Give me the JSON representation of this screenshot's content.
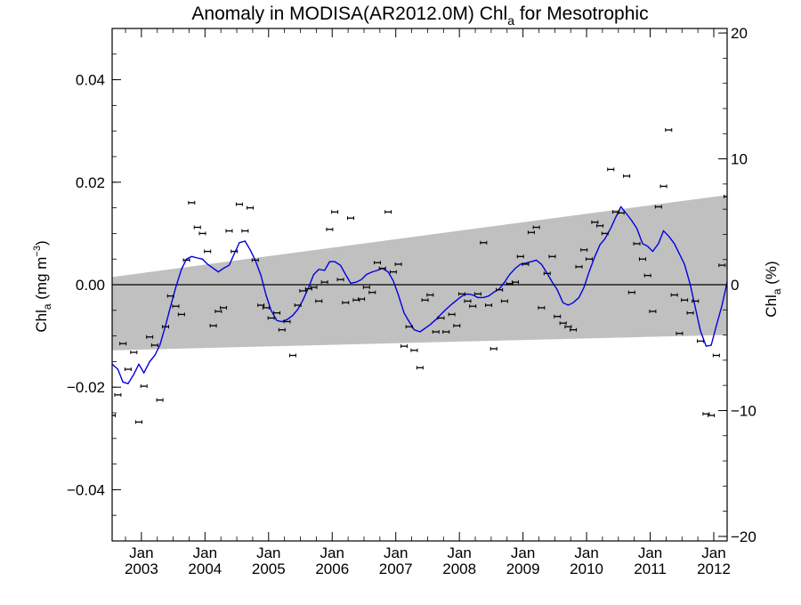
{
  "chart_data": {
    "type": "scatter",
    "title_main": "Anomaly in MODISA(AR2012.0M) Chl",
    "title_sub": "a",
    "title_tail": " for Mesotrophic",
    "ylabel_main": "Chl",
    "ylabel_sub": "a",
    "ylabel_tail": " (mg m",
    "ylabel_sup": "−3",
    "ylabel_close": ")",
    "y2label_main": "Chl",
    "y2label_sub": "a",
    "y2label_tail": " (%)",
    "xlim": [
      2002.54,
      2012.21
    ],
    "ylim": [
      -0.05,
      0.05
    ],
    "y2lim": [
      -20.36,
      20.36
    ],
    "yticks": [
      -0.04,
      -0.02,
      0.0,
      0.02,
      0.04
    ],
    "ytick_labels": [
      "−0.04",
      "−0.02",
      "0.00",
      "0.02",
      "0.04"
    ],
    "y2ticks": [
      -20,
      -10,
      0,
      10,
      20
    ],
    "y2tick_labels": [
      "−20",
      "−10",
      "0",
      "10",
      "20"
    ],
    "xticks": [
      2003,
      2004,
      2005,
      2006,
      2007,
      2008,
      2009,
      2010,
      2011,
      2012
    ],
    "xtick_month": "Jan",
    "xtick_years": [
      "2003",
      "2004",
      "2005",
      "2006",
      "2007",
      "2008",
      "2009",
      "2010",
      "2011",
      "2012"
    ],
    "colors": {
      "series": "#0000e0",
      "band": "#c0c0c0",
      "points": "#000000"
    },
    "band": {
      "lower": [
        [
          2002.54,
          -0.0128
        ],
        [
          2012.21,
          -0.0098
        ]
      ],
      "upper": [
        [
          2002.54,
          0.0015
        ],
        [
          2012.21,
          0.0175
        ]
      ]
    },
    "zero_line": 0,
    "points": {
      "x": [
        2002.54,
        2002.63,
        2002.71,
        2002.79,
        2002.88,
        2002.96,
        2003.04,
        2003.13,
        2003.21,
        2003.29,
        2003.38,
        2003.46,
        2003.54,
        2003.63,
        2003.71,
        2003.79,
        2003.88,
        2003.96,
        2004.04,
        2004.13,
        2004.21,
        2004.29,
        2004.38,
        2004.46,
        2004.54,
        2004.63,
        2004.71,
        2004.79,
        2004.88,
        2004.96,
        2005.04,
        2005.13,
        2005.21,
        2005.29,
        2005.38,
        2005.46,
        2005.54,
        2005.63,
        2005.71,
        2005.79,
        2005.88,
        2005.96,
        2006.04,
        2006.13,
        2006.21,
        2006.29,
        2006.38,
        2006.46,
        2006.54,
        2006.63,
        2006.71,
        2006.79,
        2006.88,
        2006.96,
        2007.04,
        2007.13,
        2007.21,
        2007.29,
        2007.38,
        2007.46,
        2007.54,
        2007.63,
        2007.71,
        2007.79,
        2007.88,
        2007.96,
        2008.04,
        2008.13,
        2008.21,
        2008.29,
        2008.38,
        2008.46,
        2008.54,
        2008.63,
        2008.71,
        2008.79,
        2008.88,
        2008.96,
        2009.04,
        2009.13,
        2009.21,
        2009.29,
        2009.38,
        2009.46,
        2009.54,
        2009.63,
        2009.71,
        2009.79,
        2009.88,
        2009.96,
        2010.04,
        2010.13,
        2010.21,
        2010.29,
        2010.38,
        2010.46,
        2010.54,
        2010.63,
        2010.71,
        2010.79,
        2010.88,
        2010.96,
        2011.04,
        2011.13,
        2011.21,
        2011.29,
        2011.38,
        2011.46,
        2011.54,
        2011.63,
        2011.71,
        2011.79,
        2011.88,
        2011.96,
        2012.04,
        2012.13,
        2012.21
      ],
      "y": [
        -0.0255,
        -0.0215,
        -0.0115,
        -0.0165,
        -0.0132,
        -0.0268,
        -0.0198,
        -0.0102,
        -0.0118,
        -0.0225,
        -0.0082,
        -0.0022,
        -0.0042,
        -0.0058,
        0.0048,
        0.016,
        0.0112,
        0.01,
        0.0065,
        -0.008,
        -0.0052,
        -0.0045,
        0.0105,
        0.0065,
        0.0157,
        0.0105,
        0.015,
        0.0048,
        -0.004,
        -0.0045,
        -0.0065,
        -0.0055,
        -0.0088,
        -0.0072,
        -0.0138,
        -0.004,
        -0.0012,
        -0.0008,
        -0.0005,
        -0.0032,
        0.0005,
        0.0108,
        0.0142,
        0.001,
        -0.0035,
        0.013,
        -0.003,
        -0.0028,
        -0.0005,
        -0.0015,
        0.0043,
        0.0032,
        0.0142,
        0.0025,
        0.004,
        -0.012,
        -0.0082,
        -0.0128,
        -0.0162,
        -0.003,
        -0.002,
        -0.0092,
        -0.0065,
        -0.0092,
        -0.0058,
        -0.008,
        -0.0018,
        -0.0032,
        -0.0042,
        -0.0018,
        0.0082,
        -0.004,
        -0.0125,
        -0.001,
        -0.0032,
        0.0002,
        0.0005,
        0.0055,
        0.004,
        0.0102,
        0.0112,
        -0.0045,
        0.0022,
        0.0055,
        -0.0062,
        -0.0075,
        -0.0082,
        -0.0088,
        0.0035,
        0.0068,
        0.005,
        0.0122,
        0.0115,
        0.01,
        0.0225,
        0.0142,
        0.014,
        0.0212,
        -0.0015,
        0.008,
        0.005,
        0.0018,
        -0.0052,
        0.0152,
        0.0192,
        0.0302,
        -0.002,
        -0.0095,
        -0.003,
        -0.0055,
        -0.0032,
        -0.011,
        -0.0252,
        -0.0255,
        -0.0138,
        0.0038,
        0.0172
      ]
    },
    "line": {
      "x": [
        2002.54,
        2002.63,
        2002.71,
        2002.79,
        2002.88,
        2002.96,
        2003.04,
        2003.13,
        2003.21,
        2003.29,
        2003.38,
        2003.46,
        2003.54,
        2003.63,
        2003.71,
        2003.79,
        2003.88,
        2003.96,
        2004.04,
        2004.13,
        2004.21,
        2004.29,
        2004.38,
        2004.46,
        2004.54,
        2004.63,
        2004.71,
        2004.79,
        2004.88,
        2004.96,
        2005.04,
        2005.13,
        2005.21,
        2005.29,
        2005.38,
        2005.46,
        2005.54,
        2005.63,
        2005.71,
        2005.79,
        2005.88,
        2005.96,
        2006.04,
        2006.13,
        2006.21,
        2006.29,
        2006.38,
        2006.46,
        2006.54,
        2006.63,
        2006.71,
        2006.79,
        2006.88,
        2006.96,
        2007.04,
        2007.13,
        2007.21,
        2007.29,
        2007.38,
        2007.46,
        2007.54,
        2007.63,
        2007.71,
        2007.79,
        2007.88,
        2007.96,
        2008.04,
        2008.13,
        2008.21,
        2008.29,
        2008.38,
        2008.46,
        2008.54,
        2008.63,
        2008.71,
        2008.79,
        2008.88,
        2008.96,
        2009.04,
        2009.13,
        2009.21,
        2009.29,
        2009.38,
        2009.46,
        2009.54,
        2009.63,
        2009.71,
        2009.79,
        2009.88,
        2009.96,
        2010.04,
        2010.13,
        2010.21,
        2010.29,
        2010.38,
        2010.46,
        2010.54,
        2010.63,
        2010.71,
        2010.79,
        2010.88,
        2010.96,
        2011.04,
        2011.13,
        2011.21,
        2011.29,
        2011.38,
        2011.46,
        2011.54,
        2011.63,
        2011.71,
        2011.79,
        2011.88,
        2011.96,
        2012.04,
        2012.13,
        2012.21
      ],
      "y": [
        -0.0155,
        -0.0165,
        -0.019,
        -0.0193,
        -0.0175,
        -0.0155,
        -0.0172,
        -0.015,
        -0.0138,
        -0.0118,
        -0.008,
        -0.0042,
        -0.0005,
        0.003,
        0.005,
        0.0055,
        0.0052,
        0.005,
        0.004,
        0.0032,
        0.0025,
        0.0032,
        0.0038,
        0.006,
        0.0082,
        0.0085,
        0.0068,
        0.0048,
        0.0018,
        -0.002,
        -0.005,
        -0.007,
        -0.0072,
        -0.0068,
        -0.006,
        -0.0048,
        -0.003,
        -0.0005,
        0.002,
        0.003,
        0.0028,
        0.0045,
        0.0045,
        0.0038,
        0.002,
        0.0003,
        0.0005,
        0.001,
        0.002,
        0.0025,
        0.0028,
        0.0032,
        0.0025,
        0.0008,
        -0.002,
        -0.0055,
        -0.0072,
        -0.0088,
        -0.0092,
        -0.0085,
        -0.0078,
        -0.0068,
        -0.0058,
        -0.0048,
        -0.0038,
        -0.003,
        -0.0022,
        -0.0018,
        -0.002,
        -0.0025,
        -0.0025,
        -0.0022,
        -0.0015,
        -0.0008,
        0.0005,
        0.002,
        0.0032,
        0.004,
        0.0042,
        0.0045,
        0.0048,
        0.004,
        0.0022,
        0.0005,
        -0.001,
        -0.0035,
        -0.004,
        -0.0035,
        -0.0025,
        -0.0005,
        0.0025,
        0.0055,
        0.0078,
        0.009,
        0.011,
        0.0132,
        0.0152,
        0.0138,
        0.0125,
        0.011,
        0.008,
        0.0075,
        0.0065,
        0.008,
        0.0105,
        0.0095,
        0.008,
        0.006,
        0.004,
        0.0,
        -0.0045,
        -0.009,
        -0.012,
        -0.0118,
        -0.008,
        -0.004,
        0.0005
      ]
    }
  }
}
